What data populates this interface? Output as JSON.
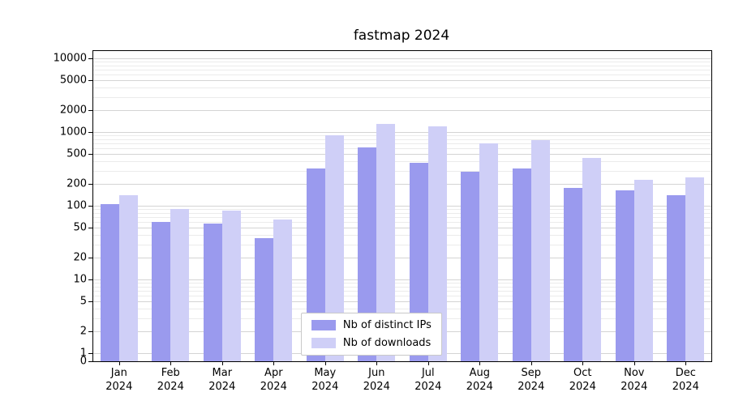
{
  "chart_data": {
    "type": "bar",
    "title": "fastmap 2024",
    "categories": [
      "Jan 2024",
      "Feb 2024",
      "Mar 2024",
      "Apr 2024",
      "May 2024",
      "Jun 2024",
      "Jul 2024",
      "Aug 2024",
      "Sep 2024",
      "Oct 2024",
      "Nov 2024",
      "Dec 2024"
    ],
    "series": [
      {
        "name": "Nb of distinct IPs",
        "color": "#9a9aee",
        "values": [
          105,
          60,
          57,
          36,
          320,
          620,
          380,
          290,
          320,
          175,
          160,
          140
        ]
      },
      {
        "name": "Nb of downloads",
        "color": "#cfcff7",
        "values": [
          140,
          90,
          87,
          65,
          900,
          1300,
          1200,
          700,
          780,
          450,
          225,
          240
        ]
      }
    ],
    "xlabel": "",
    "ylabel": "",
    "yscale": "symlog",
    "yticks": [
      0,
      1,
      2,
      5,
      10,
      20,
      50,
      100,
      200,
      500,
      1000,
      2000,
      5000,
      10000
    ],
    "ylim": [
      0,
      12000
    ],
    "grid": "horizontal-major-and-minor",
    "legend_position": "lower center"
  }
}
